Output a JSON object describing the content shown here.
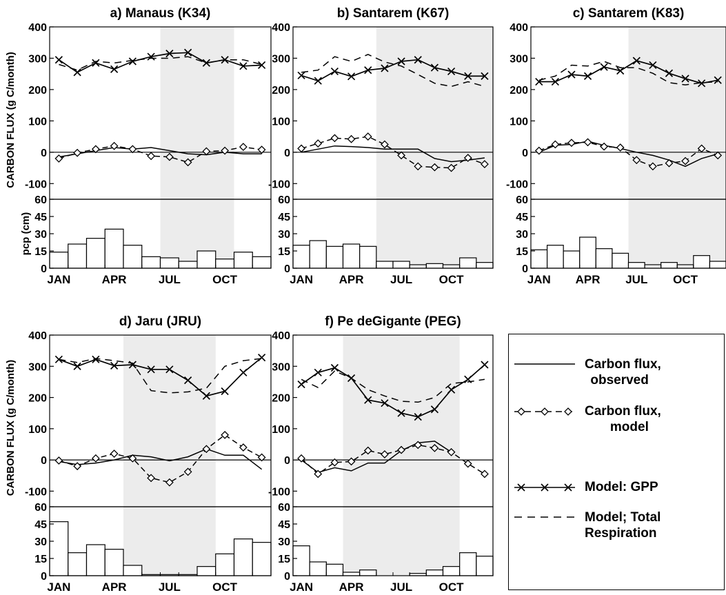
{
  "months_labeled": [
    "JAN",
    "APR",
    "JUL",
    "OCT"
  ],
  "y_axis_label_flux": "CARBON FLUX (g C/month)",
  "y_axis_label_pcp": "pcp (cm)",
  "legend": {
    "observed_line1": "Carbon flux,",
    "observed_line2": "observed",
    "model_line1": "Carbon flux,",
    "model_line2": "model",
    "gpp": "Model: GPP",
    "resp_line1": "Model; Total",
    "resp_line2": "Respiration"
  },
  "colors": {
    "line": "#000000",
    "dry_season_shade": "#ececec",
    "bar_fill": "#ffffff"
  },
  "chart_data": [
    {
      "type": "line",
      "title": "a) Manaus (K34)",
      "flux_ylim": [
        -150,
        400
      ],
      "flux_yticks": [
        -100,
        0,
        100,
        200,
        300,
        400
      ],
      "pcp_ylim": [
        0,
        60
      ],
      "pcp_yticks": [
        0,
        15,
        30,
        45,
        60
      ],
      "dry_season_months": [
        7,
        10
      ],
      "x": [
        1,
        2,
        3,
        4,
        5,
        6,
        7,
        8,
        9,
        10,
        11,
        12
      ],
      "series": [
        {
          "name": "Carbon flux, observed",
          "values": [
            -15,
            -5,
            5,
            15,
            10,
            15,
            5,
            -5,
            -8,
            0,
            -5,
            -5
          ]
        },
        {
          "name": "Carbon flux, model",
          "values": [
            -20,
            -2,
            10,
            20,
            10,
            -12,
            -15,
            -32,
            3,
            5,
            17,
            8
          ]
        },
        {
          "name": "Model: GPP",
          "values": [
            295,
            255,
            285,
            265,
            290,
            305,
            315,
            318,
            285,
            295,
            275,
            278
          ]
        },
        {
          "name": "Model; Total Respiration",
          "values": [
            280,
            262,
            290,
            285,
            293,
            300,
            300,
            305,
            285,
            295,
            295,
            280
          ]
        }
      ],
      "pcp": [
        14,
        21,
        26,
        34,
        20,
        10,
        9,
        6,
        15,
        8,
        14,
        10
      ]
    },
    {
      "type": "line",
      "title": "b) Santarem (K67)",
      "flux_ylim": [
        -150,
        400
      ],
      "flux_yticks": [
        -100,
        0,
        100,
        200,
        300,
        400
      ],
      "pcp_ylim": [
        0,
        60
      ],
      "pcp_yticks": [
        0,
        15,
        30,
        45,
        60
      ],
      "dry_season_months": [
        6,
        12
      ],
      "x": [
        1,
        2,
        3,
        4,
        5,
        6,
        7,
        8,
        9,
        10,
        11,
        12
      ],
      "series": [
        {
          "name": "Carbon flux, observed",
          "values": [
            0,
            10,
            20,
            18,
            15,
            10,
            10,
            10,
            -20,
            -30,
            -25,
            -18
          ]
        },
        {
          "name": "Carbon flux, model",
          "values": [
            12,
            28,
            45,
            42,
            50,
            25,
            -10,
            -45,
            -48,
            -50,
            -18,
            -38
          ]
        },
        {
          "name": "Model: GPP",
          "values": [
            245,
            228,
            258,
            242,
            262,
            268,
            290,
            295,
            270,
            258,
            243,
            243
          ]
        },
        {
          "name": "Model; Total Respiration",
          "values": [
            255,
            262,
            305,
            290,
            312,
            288,
            275,
            248,
            220,
            210,
            225,
            210
          ]
        }
      ],
      "pcp": [
        20,
        24,
        19,
        21,
        19,
        6,
        6,
        3,
        4,
        3,
        9,
        5
      ]
    },
    {
      "type": "line",
      "title": "c) Santarem (K83)",
      "flux_ylim": [
        -150,
        400
      ],
      "flux_yticks": [
        -100,
        0,
        100,
        200,
        300,
        400
      ],
      "pcp_ylim": [
        0,
        60
      ],
      "pcp_yticks": [
        0,
        15,
        30,
        45,
        60
      ],
      "dry_season_months": [
        7,
        12
      ],
      "x": [
        1,
        2,
        3,
        4,
        5,
        6,
        7,
        8,
        9,
        10,
        11,
        12
      ],
      "series": [
        {
          "name": "Carbon flux, observed",
          "values": [
            0,
            22,
            25,
            35,
            22,
            12,
            0,
            -10,
            -25,
            -45,
            -20,
            -5
          ]
        },
        {
          "name": "Carbon flux, model",
          "values": [
            5,
            25,
            30,
            32,
            18,
            15,
            -25,
            -45,
            -35,
            -28,
            12,
            -10
          ]
        },
        {
          "name": "Model: GPP",
          "values": [
            225,
            225,
            248,
            243,
            272,
            260,
            292,
            278,
            252,
            235,
            220,
            230
          ]
        },
        {
          "name": "Model; Total Respiration",
          "values": [
            230,
            243,
            278,
            275,
            290,
            270,
            270,
            252,
            222,
            215,
            222,
            225
          ]
        }
      ],
      "pcp": [
        16,
        20,
        15,
        27,
        17,
        13,
        5,
        3,
        5,
        3,
        11,
        6
      ]
    },
    {
      "type": "line",
      "title": "d) Jaru (JRU)",
      "flux_ylim": [
        -150,
        400
      ],
      "flux_yticks": [
        -100,
        0,
        100,
        200,
        300,
        400
      ],
      "pcp_ylim": [
        0,
        60
      ],
      "pcp_yticks": [
        0,
        15,
        30,
        45,
        60
      ],
      "dry_season_months": [
        5,
        9
      ],
      "x": [
        1,
        2,
        3,
        4,
        5,
        6,
        7,
        8,
        9,
        10,
        11,
        12
      ],
      "series": [
        {
          "name": "Carbon flux, observed",
          "values": [
            -5,
            -15,
            -10,
            0,
            15,
            10,
            -3,
            10,
            35,
            15,
            15,
            -30
          ]
        },
        {
          "name": "Carbon flux, model",
          "values": [
            -2,
            -20,
            5,
            20,
            5,
            -58,
            -72,
            -38,
            35,
            80,
            40,
            8
          ]
        },
        {
          "name": "Model: GPP",
          "values": [
            322,
            300,
            322,
            302,
            305,
            290,
            290,
            255,
            205,
            220,
            280,
            328
          ]
        },
        {
          "name": "Model; Total Respiration",
          "values": [
            322,
            312,
            325,
            318,
            310,
            222,
            215,
            218,
            230,
            300,
            318,
            325
          ]
        }
      ],
      "pcp": [
        47,
        20,
        27,
        23,
        9,
        1,
        1,
        1,
        8,
        19,
        32,
        29
      ]
    },
    {
      "type": "line",
      "title": "f) Pe deGigante (PEG)",
      "flux_ylim": [
        -150,
        400
      ],
      "flux_yticks": [
        -100,
        0,
        100,
        200,
        300,
        400
      ],
      "pcp_ylim": [
        0,
        60
      ],
      "pcp_yticks": [
        0,
        15,
        30,
        45,
        60
      ],
      "dry_season_months": [
        4,
        10
      ],
      "x": [
        1,
        2,
        3,
        4,
        5,
        6,
        7,
        8,
        9,
        10,
        11,
        12
      ],
      "series": [
        {
          "name": "Carbon flux, observed",
          "values": [
            0,
            -40,
            -25,
            -35,
            -10,
            -10,
            30,
            55,
            60,
            25,
            null,
            null
          ]
        },
        {
          "name": "Carbon flux, model",
          "values": [
            5,
            -45,
            -8,
            -5,
            30,
            18,
            32,
            48,
            38,
            25,
            -12,
            -45
          ]
        },
        {
          "name": "Model: GPP",
          "values": [
            242,
            280,
            295,
            262,
            192,
            182,
            150,
            138,
            162,
            225,
            258,
            305
          ]
        },
        {
          "name": "Model; Total Respiration",
          "values": [
            258,
            232,
            285,
            262,
            225,
            205,
            188,
            185,
            200,
            245,
            250,
            258
          ]
        }
      ],
      "pcp": [
        26,
        12,
        10,
        3,
        5,
        0,
        0,
        2,
        5,
        8,
        20,
        17
      ]
    }
  ]
}
